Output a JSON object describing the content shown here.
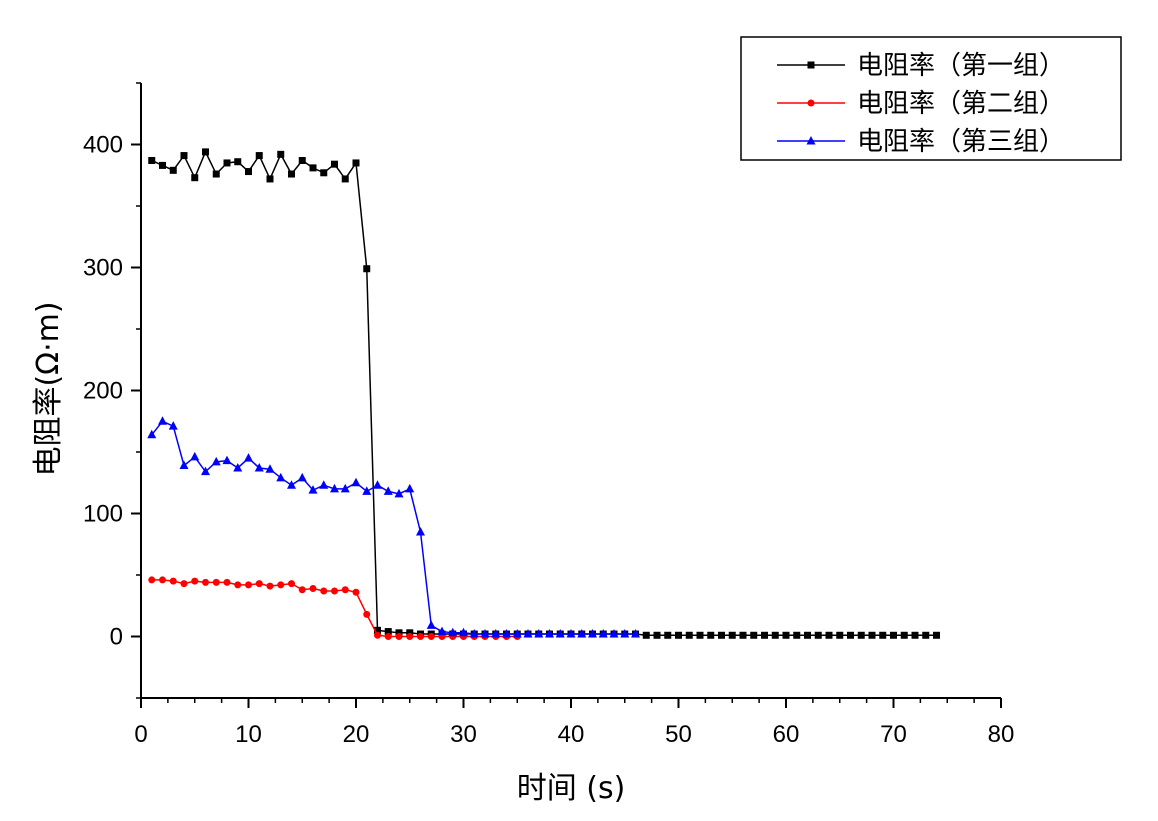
{
  "chart_data": {
    "type": "line",
    "xlabel": "时间 (s)",
    "ylabel": "电阻率(Ω·m)",
    "xlim": [
      0,
      80
    ],
    "ylim": [
      -50,
      450
    ],
    "xticks": [
      0,
      10,
      20,
      30,
      40,
      50,
      60,
      70,
      80
    ],
    "yticks": [
      0,
      100,
      200,
      300,
      400
    ],
    "x_minor_step": 2.5,
    "y_minor_step": 50,
    "grid": false,
    "legend_position": "top-right",
    "series": [
      {
        "name": "电阻率（第一组）",
        "color": "#000000",
        "marker": "square",
        "x": [
          1,
          2,
          3,
          4,
          5,
          6,
          7,
          8,
          9,
          10,
          11,
          12,
          13,
          14,
          15,
          16,
          17,
          18,
          19,
          20,
          21,
          22,
          23,
          24,
          25,
          26,
          27,
          28,
          29,
          30,
          31,
          32,
          33,
          34,
          35,
          36,
          37,
          38,
          39,
          40,
          41,
          42,
          43,
          44,
          45,
          46,
          47,
          48,
          49,
          50,
          51,
          52,
          53,
          54,
          55,
          56,
          57,
          58,
          59,
          60,
          61,
          62,
          63,
          64,
          65,
          66,
          67,
          68,
          69,
          70,
          71,
          72,
          73,
          74
        ],
        "y": [
          387,
          383,
          379,
          391,
          373,
          394,
          376,
          385,
          386,
          378,
          391,
          372,
          392,
          376,
          387,
          381,
          377,
          384,
          372,
          385,
          299,
          5,
          4,
          3,
          3,
          2,
          2,
          2,
          2,
          2,
          2,
          2,
          2,
          2,
          2,
          2,
          2,
          2,
          2,
          2,
          2,
          2,
          2,
          2,
          2,
          2,
          1,
          1,
          1,
          1,
          1,
          1,
          1,
          1,
          1,
          1,
          1,
          1,
          1,
          1,
          1,
          1,
          1,
          1,
          1,
          1,
          1,
          1,
          1,
          1,
          1,
          1,
          1,
          1
        ]
      },
      {
        "name": "电阻率（第二组）",
        "color": "#ff0000",
        "marker": "circle",
        "x": [
          1,
          2,
          3,
          4,
          5,
          6,
          7,
          8,
          9,
          10,
          11,
          12,
          13,
          14,
          15,
          16,
          17,
          18,
          19,
          20,
          21,
          22,
          23,
          24,
          25,
          26,
          27,
          28,
          29,
          30,
          31,
          32,
          33,
          34,
          35
        ],
        "y": [
          46,
          46,
          45,
          43,
          45,
          44,
          44,
          44,
          42,
          42,
          43,
          41,
          42,
          43,
          38,
          39,
          37,
          37,
          38,
          36,
          18,
          1,
          0,
          0,
          0,
          0,
          0,
          0,
          0,
          0,
          0,
          0,
          0,
          0,
          0
        ]
      },
      {
        "name": "电阻率（第三组）",
        "color": "#0000ff",
        "marker": "triangle",
        "x": [
          1,
          2,
          3,
          4,
          5,
          6,
          7,
          8,
          9,
          10,
          11,
          12,
          13,
          14,
          15,
          16,
          17,
          18,
          19,
          20,
          21,
          22,
          23,
          24,
          25,
          26,
          27,
          28,
          29,
          30,
          31,
          32,
          33,
          34,
          35,
          36,
          37,
          38,
          39,
          40,
          41,
          42,
          43,
          44,
          45,
          46
        ],
        "y": [
          164,
          175,
          171,
          139,
          146,
          134,
          142,
          143,
          137,
          145,
          137,
          136,
          129,
          123,
          129,
          119,
          123,
          120,
          120,
          125,
          118,
          123,
          118,
          116,
          120,
          85,
          9,
          4,
          3,
          3,
          2,
          2,
          2,
          2,
          2,
          2,
          2,
          2,
          2,
          2,
          2,
          2,
          2,
          2,
          2,
          2
        ]
      }
    ]
  }
}
